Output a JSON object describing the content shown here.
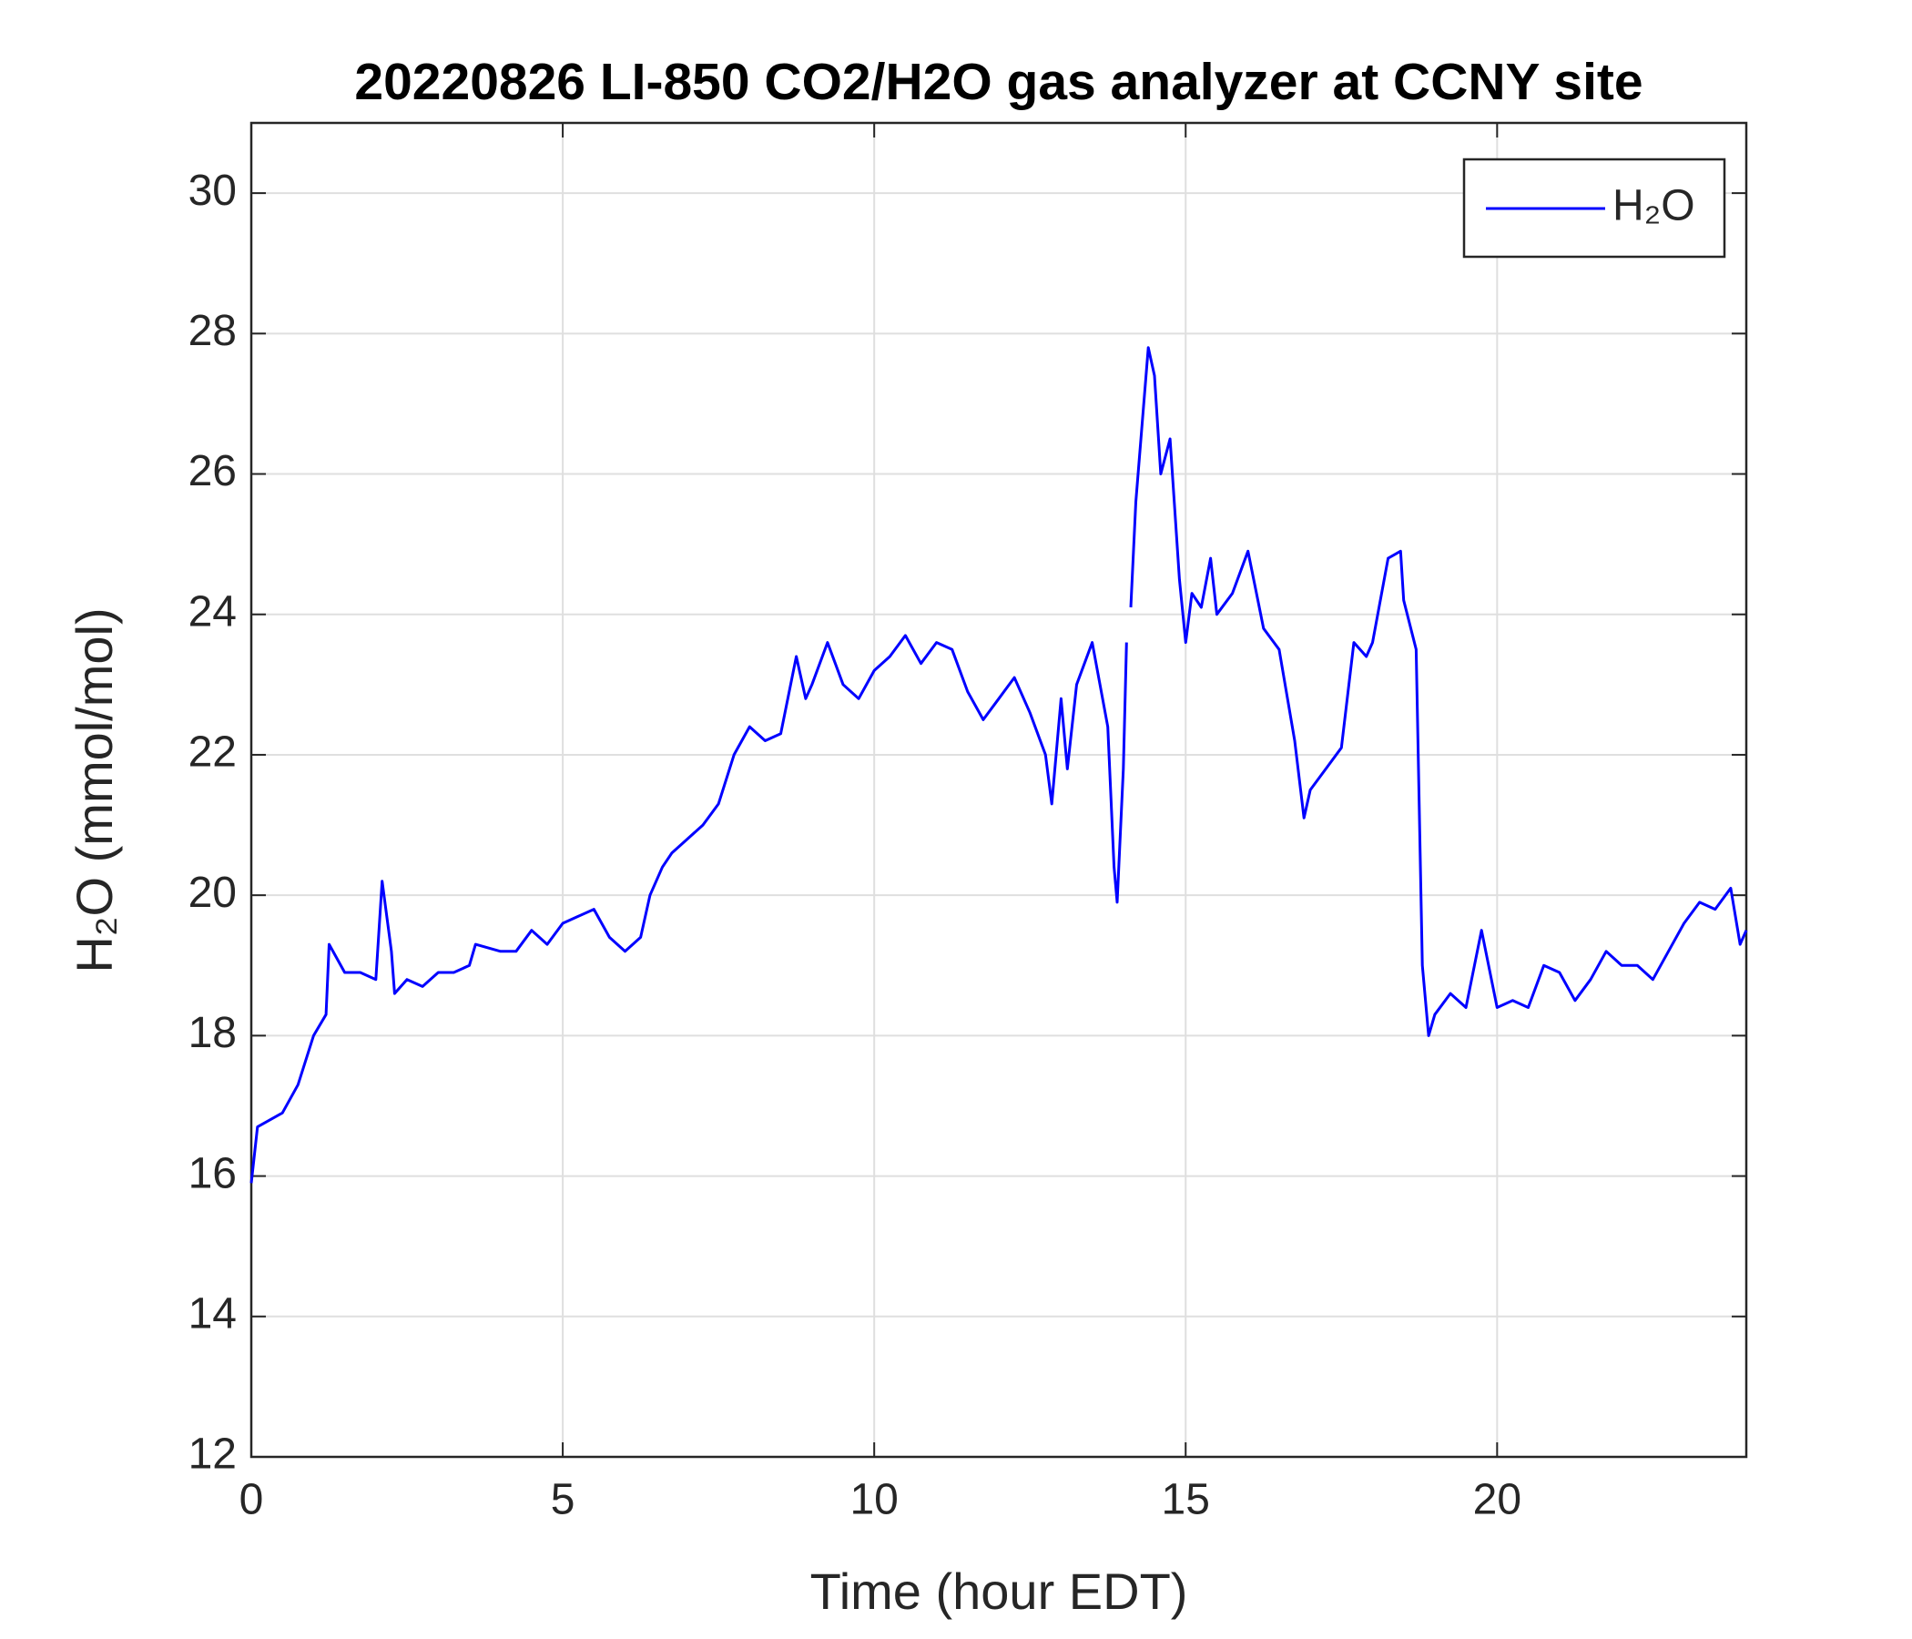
{
  "chart_data": {
    "type": "line",
    "title": "20220826 LI-850 CO2/H2O gas analyzer at CCNY site",
    "xlabel": "Time (hour EDT)",
    "ylabel": "H₂O (mmol/mol)",
    "x": [
      0,
      0.1,
      0.5,
      0.75,
      1.0,
      1.2,
      1.25,
      1.5,
      1.75,
      2.0,
      2.1,
      2.25,
      2.3,
      2.5,
      2.75,
      3.0,
      3.25,
      3.5,
      3.6,
      4.0,
      4.25,
      4.5,
      4.75,
      5.0,
      5.25,
      5.5,
      5.75,
      6.0,
      6.25,
      6.4,
      6.6,
      6.75,
      7.0,
      7.25,
      7.5,
      7.75,
      8.0,
      8.25,
      8.5,
      8.75,
      8.9,
      9.0,
      9.25,
      9.5,
      9.75,
      10.0,
      10.25,
      10.5,
      10.75,
      11.0,
      11.25,
      11.5,
      11.75,
      12.0,
      12.25,
      12.5,
      12.75,
      12.85,
      13.0,
      13.1,
      13.25,
      13.5,
      13.75,
      13.85,
      13.9,
      14.0,
      14.05,
      14.1,
      14.12,
      14.2,
      14.4,
      14.5,
      14.6,
      14.75,
      14.9,
      15.0,
      15.1,
      15.25,
      15.4,
      15.5,
      15.75,
      16.0,
      16.25,
      16.5,
      16.75,
      16.9,
      17.0,
      17.25,
      17.5,
      17.7,
      17.9,
      18.0,
      18.25,
      18.45,
      18.5,
      18.7,
      18.8,
      18.9,
      19.0,
      19.25,
      19.5,
      19.75,
      20.0,
      20.25,
      20.5,
      20.75,
      21.0,
      21.25,
      21.5,
      21.75,
      22.0,
      22.25,
      22.5,
      22.75,
      23.0,
      23.25,
      23.5,
      23.75,
      23.9,
      24.0
    ],
    "series": [
      {
        "name": "H₂O",
        "color": "#0000ff",
        "values": [
          15.9,
          16.7,
          16.9,
          17.3,
          18.0,
          18.3,
          19.3,
          18.9,
          18.9,
          18.8,
          20.2,
          19.2,
          18.6,
          18.8,
          18.7,
          18.9,
          18.9,
          19.0,
          19.3,
          19.2,
          19.2,
          19.5,
          19.3,
          19.6,
          19.7,
          19.8,
          19.4,
          19.2,
          19.4,
          20.0,
          20.4,
          20.6,
          20.8,
          21.0,
          21.3,
          22.0,
          22.4,
          22.2,
          22.3,
          23.4,
          22.8,
          23.0,
          23.6,
          23.0,
          22.8,
          23.2,
          23.4,
          23.7,
          23.3,
          23.6,
          23.5,
          22.9,
          22.5,
          22.8,
          23.1,
          22.6,
          22.0,
          21.3,
          22.8,
          21.8,
          23.0,
          23.6,
          22.4,
          20.4,
          19.9,
          21.8,
          23.6,
          null,
          24.1,
          25.6,
          27.8,
          27.4,
          26.0,
          26.5,
          24.5,
          23.6,
          24.3,
          24.1,
          24.8,
          24.0,
          24.3,
          24.9,
          23.8,
          23.5,
          22.2,
          21.1,
          21.5,
          21.8,
          22.1,
          23.6,
          23.4,
          23.6,
          24.8,
          24.9,
          24.2,
          23.5,
          19.0,
          18.0,
          18.3,
          18.6,
          18.4,
          19.5,
          18.4,
          18.5,
          18.4,
          19.0,
          18.9,
          18.5,
          18.8,
          19.2,
          19.0,
          19.0,
          18.8,
          19.2,
          19.6,
          19.9,
          19.8,
          20.1,
          19.3,
          19.5
        ]
      }
    ],
    "xlim": [
      0,
      24
    ],
    "xticks": [
      0,
      5,
      10,
      15,
      20
    ],
    "ylim": [
      12,
      31
    ],
    "yticks": [
      12,
      14,
      16,
      18,
      20,
      22,
      24,
      26,
      28,
      30
    ],
    "grid": true,
    "legend": "upper right"
  }
}
